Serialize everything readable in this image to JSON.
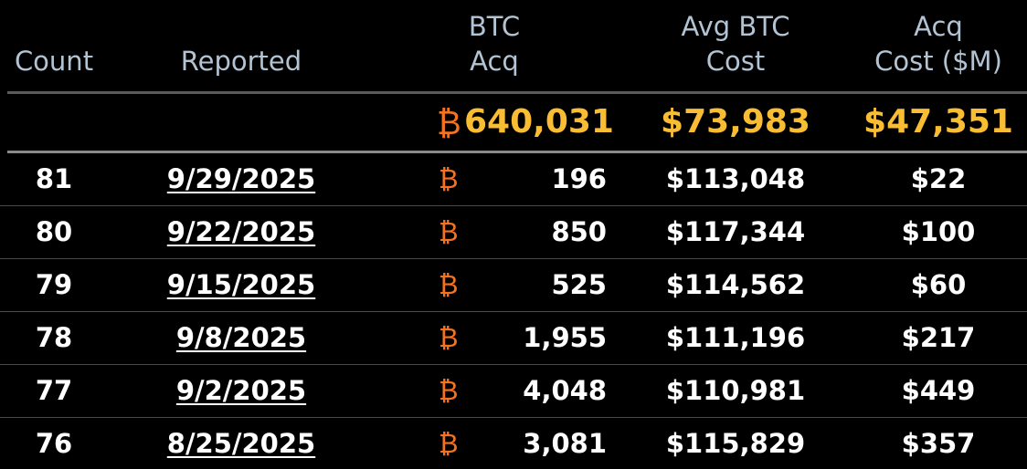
{
  "table": {
    "headers": {
      "count": "Count",
      "reported": "Reported",
      "btc_acq": [
        "BTC",
        "Acq"
      ],
      "avg_cost": [
        "Avg BTC",
        "Cost"
      ],
      "acq_cost": [
        "Acq",
        "Cost ($M)"
      ]
    },
    "btc_icon": "bitcoin-icon",
    "colors": {
      "header_text": "#b2c3d4",
      "totals_text": "#f9bd34",
      "bitcoin_icon": "#f47320",
      "body_text": "#ffffff",
      "background": "#000000"
    },
    "totals": {
      "btc_symbol": "₿",
      "btc_acq": "640,031",
      "avg_cost": "$73,983",
      "acq_cost": "$47,351"
    },
    "rows": [
      {
        "count": "81",
        "reported": "9/29/2025",
        "btc_symbol": "₿",
        "btc_acq": "196",
        "avg_cost": "$113,048",
        "acq_cost": "$22"
      },
      {
        "count": "80",
        "reported": "9/22/2025",
        "btc_symbol": "₿",
        "btc_acq": "850",
        "avg_cost": "$117,344",
        "acq_cost": "$100"
      },
      {
        "count": "79",
        "reported": "9/15/2025",
        "btc_symbol": "₿",
        "btc_acq": "525",
        "avg_cost": "$114,562",
        "acq_cost": "$60"
      },
      {
        "count": "78",
        "reported": "9/8/2025",
        "btc_symbol": "₿",
        "btc_acq": "1,955",
        "avg_cost": "$111,196",
        "acq_cost": "$217"
      },
      {
        "count": "77",
        "reported": "9/2/2025",
        "btc_symbol": "₿",
        "btc_acq": "4,048",
        "avg_cost": "$110,981",
        "acq_cost": "$449"
      },
      {
        "count": "76",
        "reported": "8/25/2025",
        "btc_symbol": "₿",
        "btc_acq": "3,081",
        "avg_cost": "$115,829",
        "acq_cost": "$357"
      }
    ]
  }
}
